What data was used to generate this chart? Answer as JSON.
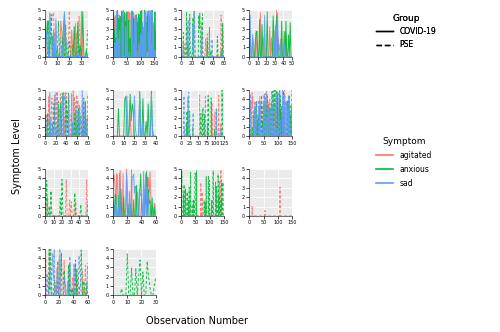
{
  "colors": {
    "agitated": "#F8766D",
    "anxious": "#00BA38",
    "sad": "#619CFF"
  },
  "background": "#EBEBEB",
  "grid_color": "#FFFFFF",
  "ylim": [
    0,
    5
  ],
  "yticks": [
    0,
    1,
    2,
    3,
    4,
    5
  ],
  "panels": [
    {
      "row": 0,
      "col": 0,
      "xlim": [
        0,
        35
      ],
      "xticks": [
        0,
        10,
        20,
        30
      ],
      "solid": {
        "agitated": 0.3,
        "anxious": 0.25,
        "sad": 0.15
      },
      "dashed": {
        "agitated": 0.35,
        "anxious": 0.3,
        "sad": 0.2
      }
    },
    {
      "row": 0,
      "col": 1,
      "xlim": [
        0,
        155
      ],
      "xticks": [
        0,
        50,
        100,
        150
      ],
      "solid": {
        "agitated": 0.55,
        "anxious": 0.65,
        "sad": 0.25
      },
      "dashed": {
        "agitated": 0.0,
        "anxious": 0.0,
        "sad": 0.0
      }
    },
    {
      "row": 0,
      "col": 2,
      "xlim": [
        0,
        80
      ],
      "xticks": [
        0,
        20,
        40,
        60,
        80
      ],
      "solid": {
        "agitated": 0.0,
        "anxious": 0.0,
        "sad": 0.0
      },
      "dashed": {
        "agitated": 0.1,
        "anxious": 0.2,
        "sad": 0.15
      }
    },
    {
      "row": 0,
      "col": 3,
      "xlim": [
        0,
        50
      ],
      "xticks": [
        0,
        10,
        20,
        30,
        40,
        50
      ],
      "solid": {
        "agitated": 0.2,
        "anxious": 0.35,
        "sad": 0.2
      },
      "dashed": {
        "agitated": 0.0,
        "anxious": 0.0,
        "sad": 0.0
      }
    },
    {
      "row": 1,
      "col": 0,
      "xlim": [
        0,
        80
      ],
      "xticks": [
        0,
        20,
        40,
        60,
        80
      ],
      "solid": {
        "agitated": 0.0,
        "anxious": 0.0,
        "sad": 0.0
      },
      "dashed": {
        "agitated": 0.45,
        "anxious": 0.5,
        "sad": 0.45
      }
    },
    {
      "row": 1,
      "col": 1,
      "xlim": [
        0,
        40
      ],
      "xticks": [
        0,
        10,
        20,
        30,
        40
      ],
      "solid": {
        "agitated": 0.1,
        "anxious": 0.4,
        "sad": 0.15
      },
      "dashed": {
        "agitated": 0.0,
        "anxious": 0.0,
        "sad": 0.0
      }
    },
    {
      "row": 1,
      "col": 2,
      "xlim": [
        0,
        125
      ],
      "xticks": [
        0,
        25,
        50,
        75,
        100,
        125
      ],
      "solid": {
        "agitated": 0.0,
        "anxious": 0.0,
        "sad": 0.0
      },
      "dashed": {
        "agitated": 0.05,
        "anxious": 0.15,
        "sad": 0.05
      }
    },
    {
      "row": 1,
      "col": 3,
      "xlim": [
        0,
        150
      ],
      "xticks": [
        0,
        50,
        100,
        150
      ],
      "solid": {
        "agitated": 0.0,
        "anxious": 0.0,
        "sad": 0.0
      },
      "dashed": {
        "agitated": 0.35,
        "anxious": 0.4,
        "sad": 0.35
      }
    },
    {
      "row": 2,
      "col": 0,
      "xlim": [
        0,
        50
      ],
      "xticks": [
        0,
        10,
        20,
        30,
        40,
        50
      ],
      "solid": {
        "agitated": 0.0,
        "anxious": 0.0,
        "sad": 0.0
      },
      "dashed": {
        "agitated": 0.1,
        "anxious": 0.25,
        "sad": 0.0
      }
    },
    {
      "row": 2,
      "col": 1,
      "xlim": [
        0,
        60
      ],
      "xticks": [
        0,
        20,
        40,
        60
      ],
      "solid": {
        "agitated": 0.45,
        "anxious": 0.45,
        "sad": 0.35
      },
      "dashed": {
        "agitated": 0.0,
        "anxious": 0.0,
        "sad": 0.0
      }
    },
    {
      "row": 2,
      "col": 2,
      "xlim": [
        0,
        150
      ],
      "xticks": [
        0,
        50,
        100,
        150
      ],
      "solid": {
        "agitated": 0.0,
        "anxious": 0.0,
        "sad": 0.0
      },
      "dashed": {
        "agitated": 0.05,
        "anxious": 0.2,
        "sad": 0.0
      }
    },
    {
      "row": 2,
      "col": 3,
      "xlim": [
        0,
        150
      ],
      "xticks": [
        0,
        50,
        100,
        150
      ],
      "solid": {
        "agitated": 0.0,
        "anxious": 0.0,
        "sad": 0.0
      },
      "dashed": {
        "agitated": 0.05,
        "anxious": 0.0,
        "sad": 0.0
      }
    },
    {
      "row": 3,
      "col": 0,
      "xlim": [
        0,
        60
      ],
      "xticks": [
        0,
        20,
        40,
        60
      ],
      "solid": {
        "agitated": 0.0,
        "anxious": 0.0,
        "sad": 0.0
      },
      "dashed": {
        "agitated": 0.35,
        "anxious": 0.4,
        "sad": 0.35
      }
    },
    {
      "row": 3,
      "col": 1,
      "xlim": [
        0,
        30
      ],
      "xticks": [
        0,
        10,
        20,
        30
      ],
      "solid": {
        "agitated": 0.0,
        "anxious": 0.0,
        "sad": 0.0
      },
      "dashed": {
        "agitated": 0.0,
        "anxious": 0.4,
        "sad": 0.0
      }
    }
  ]
}
